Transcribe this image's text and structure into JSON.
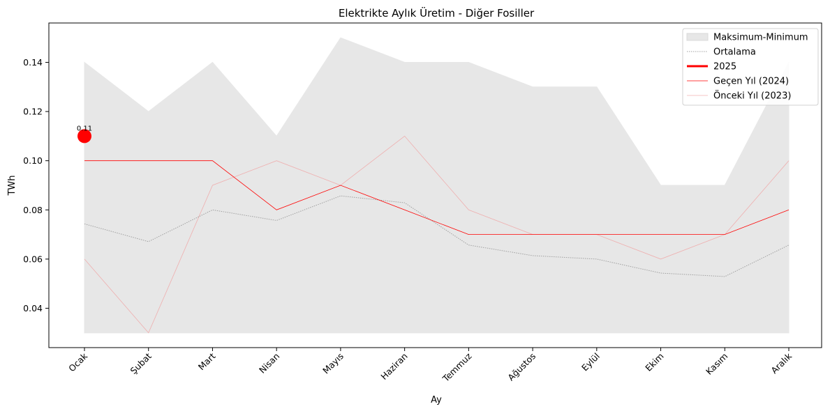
{
  "chart_data": {
    "type": "line",
    "title": "Elektrikte Aylık Üretim - Diğer Fosiller",
    "xlabel": "Ay",
    "ylabel": "TWh",
    "categories": [
      "Ocak",
      "Şubat",
      "Mart",
      "Nisan",
      "Mayıs",
      "Haziran",
      "Temmuz",
      "Ağustos",
      "Eylül",
      "Ekim",
      "Kasım",
      "Aralık"
    ],
    "ylim": [
      0.024,
      0.156
    ],
    "yticks": [
      "0.04",
      "0.06",
      "0.08",
      "0.10",
      "0.12",
      "0.14"
    ],
    "legend_position": "top-right",
    "band": {
      "name": "Maksimum-Minimum",
      "max": [
        0.14,
        0.12,
        0.14,
        0.11,
        0.15,
        0.14,
        0.14,
        0.13,
        0.13,
        0.09,
        0.09,
        0.14
      ],
      "min": [
        0.03,
        0.03,
        0.03,
        0.03,
        0.03,
        0.03,
        0.03,
        0.03,
        0.03,
        0.03,
        0.03,
        0.03
      ],
      "color": "#e7e7e7"
    },
    "series": [
      {
        "name": "Ortalama",
        "values": [
          0.0743,
          0.0671,
          0.08,
          0.0757,
          0.0857,
          0.0829,
          0.0657,
          0.0614,
          0.06,
          0.0543,
          0.0529,
          0.0657
        ],
        "color": "#a0a0a0",
        "style": "dotted"
      },
      {
        "name": "2025",
        "values": [
          0.11,
          null,
          null,
          null,
          null,
          null,
          null,
          null,
          null,
          null,
          null,
          null
        ],
        "color": "#ff0000",
        "style": "thick"
      },
      {
        "name": "Geçen Yıl (2024)",
        "values": [
          0.1,
          0.1,
          0.1,
          0.08,
          0.09,
          0.08,
          0.07,
          0.07,
          0.07,
          0.07,
          0.07,
          0.08
        ],
        "color": "#ff0000",
        "style": "thin"
      },
      {
        "name": "Önceki Yıl (2023)",
        "values": [
          0.06,
          0.03,
          0.09,
          0.1,
          0.09,
          0.11,
          0.08,
          0.07,
          0.07,
          0.06,
          0.07,
          0.1
        ],
        "color": "#f0a8a8",
        "style": "faint"
      }
    ],
    "annotations": [
      {
        "category": "Ocak",
        "value": 0.11,
        "text": "0.11"
      }
    ]
  }
}
